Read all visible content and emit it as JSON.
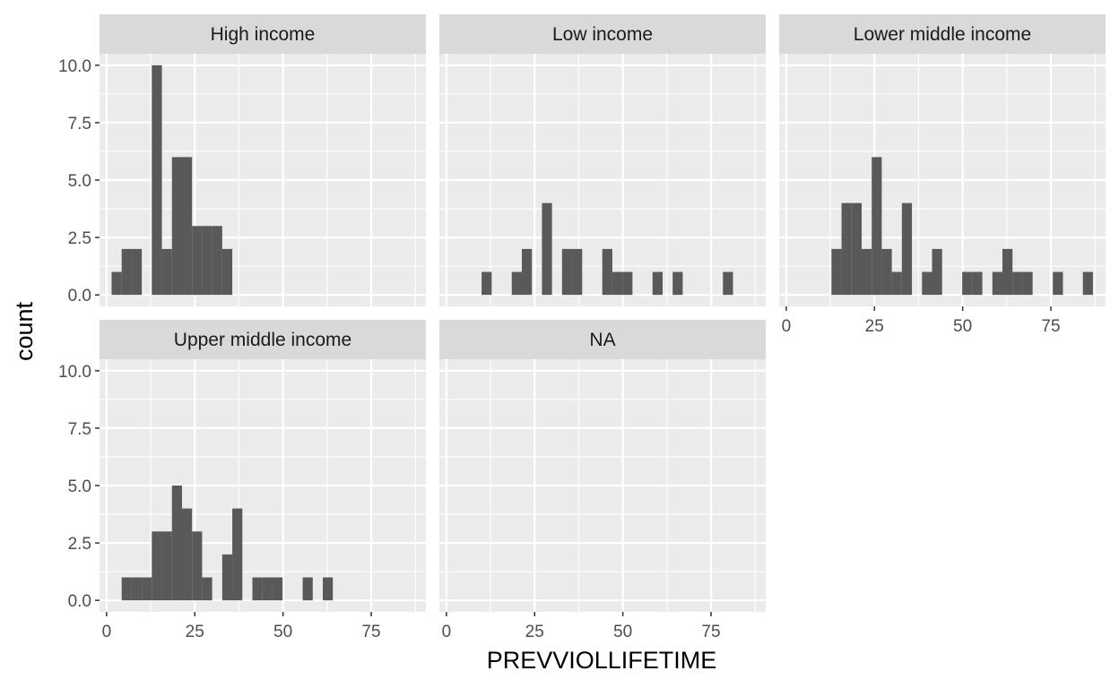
{
  "chart_data": {
    "type": "histogram",
    "xlabel": "PREVVIOLLIFETIME",
    "ylabel": "count",
    "xlim": [
      -2,
      90.5
    ],
    "ylim": [
      -0.5,
      10.5
    ],
    "x_ticks": [
      0,
      25,
      50,
      75
    ],
    "x_tick_labels": [
      "0",
      "25",
      "50",
      "75"
    ],
    "y_ticks": [
      0,
      2.5,
      5,
      7.5,
      10
    ],
    "y_tick_labels": [
      "0.0",
      "2.5",
      "5.0",
      "7.5",
      "10.0"
    ],
    "bin_width": 2.85,
    "grid": true,
    "colors": {
      "bar": "#595959",
      "panel": "#ebebeb",
      "strip": "#d9d9d9",
      "grid": "#ffffff"
    },
    "panels": [
      {
        "label": "High income",
        "bins": [
          {
            "x": 2.85,
            "count": 1
          },
          {
            "x": 5.7,
            "count": 2
          },
          {
            "x": 8.55,
            "count": 2
          },
          {
            "x": 14.25,
            "count": 10
          },
          {
            "x": 17.1,
            "count": 2
          },
          {
            "x": 19.95,
            "count": 6
          },
          {
            "x": 22.8,
            "count": 6
          },
          {
            "x": 25.65,
            "count": 3
          },
          {
            "x": 28.5,
            "count": 3
          },
          {
            "x": 31.35,
            "count": 3
          },
          {
            "x": 34.2,
            "count": 2
          }
        ]
      },
      {
        "label": "Low income",
        "bins": [
          {
            "x": 11.4,
            "count": 1
          },
          {
            "x": 19.95,
            "count": 1
          },
          {
            "x": 22.8,
            "count": 2
          },
          {
            "x": 28.5,
            "count": 4
          },
          {
            "x": 34.2,
            "count": 2
          },
          {
            "x": 37.05,
            "count": 2
          },
          {
            "x": 45.6,
            "count": 2
          },
          {
            "x": 48.45,
            "count": 1
          },
          {
            "x": 51.3,
            "count": 1
          },
          {
            "x": 59.85,
            "count": 1
          },
          {
            "x": 65.55,
            "count": 1
          },
          {
            "x": 79.8,
            "count": 1
          }
        ]
      },
      {
        "label": "Lower middle income",
        "bins": [
          {
            "x": 14.25,
            "count": 2
          },
          {
            "x": 17.1,
            "count": 4
          },
          {
            "x": 19.95,
            "count": 4
          },
          {
            "x": 22.8,
            "count": 2
          },
          {
            "x": 25.65,
            "count": 6
          },
          {
            "x": 28.5,
            "count": 2
          },
          {
            "x": 31.35,
            "count": 1
          },
          {
            "x": 34.2,
            "count": 4
          },
          {
            "x": 39.9,
            "count": 1
          },
          {
            "x": 42.75,
            "count": 2
          },
          {
            "x": 51.3,
            "count": 1
          },
          {
            "x": 54.15,
            "count": 1
          },
          {
            "x": 59.85,
            "count": 1
          },
          {
            "x": 62.7,
            "count": 2
          },
          {
            "x": 65.55,
            "count": 1
          },
          {
            "x": 68.4,
            "count": 1
          },
          {
            "x": 77.0,
            "count": 1
          },
          {
            "x": 85.5,
            "count": 1
          }
        ]
      },
      {
        "label": "Upper middle income",
        "bins": [
          {
            "x": 5.7,
            "count": 1
          },
          {
            "x": 8.55,
            "count": 1
          },
          {
            "x": 11.4,
            "count": 1
          },
          {
            "x": 14.25,
            "count": 3
          },
          {
            "x": 17.1,
            "count": 3
          },
          {
            "x": 19.95,
            "count": 5
          },
          {
            "x": 22.8,
            "count": 4
          },
          {
            "x": 25.65,
            "count": 3
          },
          {
            "x": 28.5,
            "count": 1
          },
          {
            "x": 34.2,
            "count": 2
          },
          {
            "x": 37.05,
            "count": 4
          },
          {
            "x": 42.75,
            "count": 1
          },
          {
            "x": 45.6,
            "count": 1
          },
          {
            "x": 48.45,
            "count": 1
          },
          {
            "x": 57.0,
            "count": 1
          },
          {
            "x": 62.7,
            "count": 1
          }
        ]
      },
      {
        "label": "NA",
        "bins": []
      }
    ]
  }
}
